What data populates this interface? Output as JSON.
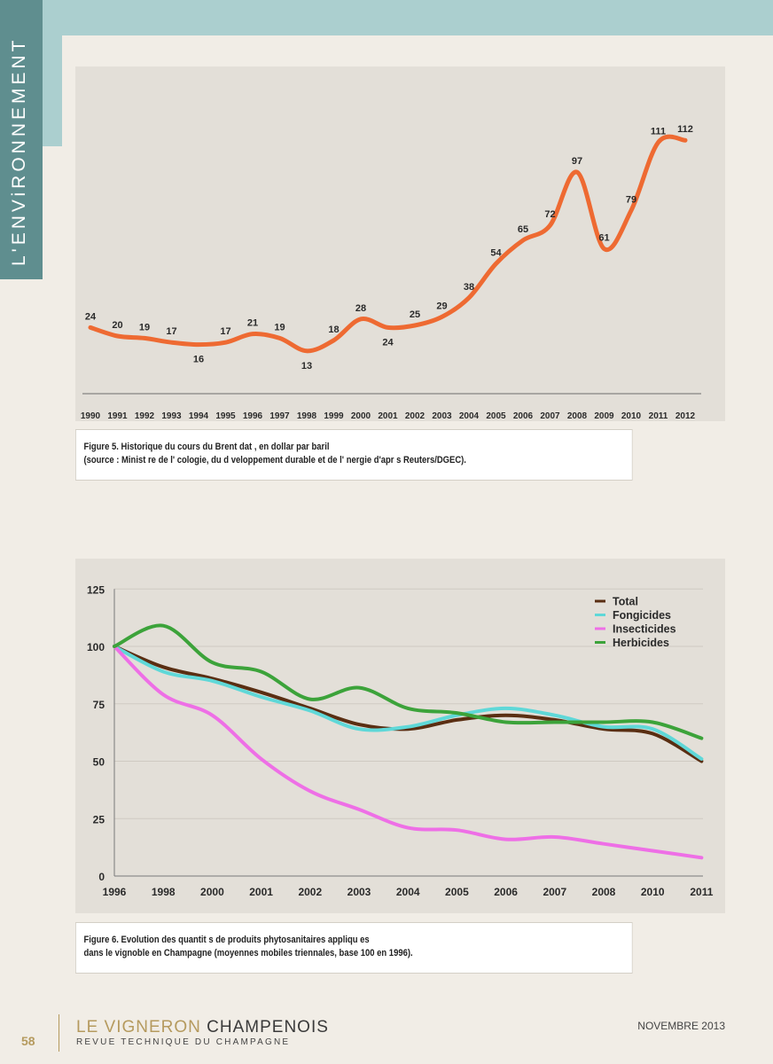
{
  "header": {
    "section_label": "L'ENViRONNEMENT"
  },
  "figures": [
    {
      "caption_line1": "Figure 5. Historique du cours du Brent dat   , en dollar par baril",
      "caption_line2": "(source : Minist   re de l'   cologie, du d   veloppement durable et de l'   nergie d'apr   s Reuters/DGEC)."
    },
    {
      "caption_line1": "Figure 6. Evolution des quantit   s de produits phytosanitaires appliqu   es",
      "caption_line2": "dans le vignoble en Champagne (moyennes mobiles triennales, base 100 en 1996)."
    }
  ],
  "footer": {
    "page_number": "58",
    "magazine_title_part1": "LE VIGNERON ",
    "magazine_title_part2": "CHAMPENOIS",
    "magazine_subtitle": "REVUE TECHNIQUE DU CHAMPAGNE",
    "issue_date": "NOVEMBRE 2013"
  },
  "chart_data": [
    {
      "type": "line",
      "title": "",
      "xlabel": "",
      "ylabel": "",
      "x": [
        "1990",
        "1991",
        "1992",
        "1993",
        "1994",
        "1995",
        "1996",
        "1997",
        "1998",
        "1999",
        "2000",
        "2001",
        "2002",
        "2003",
        "2004",
        "2005",
        "2006",
        "2007",
        "2008",
        "2009",
        "2010",
        "2011",
        "2012"
      ],
      "series": [
        {
          "values": [
            24,
            20,
            19,
            17,
            16,
            17,
            21,
            19,
            13,
            18,
            28,
            24,
            25,
            29,
            38,
            54,
            65,
            72,
            97,
            61,
            79,
            111,
            112
          ],
          "color": "#ee6a32"
        }
      ],
      "data_labels": true,
      "ylim": [
        0,
        130
      ],
      "grid": false
    },
    {
      "type": "line",
      "title": "",
      "xlabel": "",
      "ylabel": "",
      "x": [
        "1996",
        "1998",
        "2000",
        "2001",
        "2002",
        "2003",
        "2004",
        "2005",
        "2006",
        "2007",
        "2008",
        "2010",
        "2011"
      ],
      "yticks": [
        0,
        25,
        50,
        75,
        100,
        125
      ],
      "ylim": [
        0,
        125
      ],
      "legend_position": "top-right",
      "grid": true,
      "series": [
        {
          "name": "Total",
          "color": "#5a2e12",
          "values": [
            100,
            91,
            86,
            80,
            73,
            66,
            64,
            68,
            70,
            68,
            64,
            62,
            50
          ]
        },
        {
          "name": "Fongicides",
          "color": "#5fd8d8",
          "values": [
            100,
            89,
            85,
            78,
            72,
            64,
            65,
            70,
            73,
            70,
            65,
            64,
            51
          ]
        },
        {
          "name": "Insecticides",
          "color": "#ee6fe6",
          "values": [
            100,
            79,
            70,
            51,
            37,
            29,
            21,
            20,
            16,
            17,
            14,
            11,
            8
          ]
        },
        {
          "name": "Herbicides",
          "color": "#3ca33a",
          "values": [
            100,
            109,
            93,
            89,
            77,
            82,
            73,
            71,
            67,
            67,
            67,
            67,
            60
          ]
        }
      ]
    }
  ]
}
